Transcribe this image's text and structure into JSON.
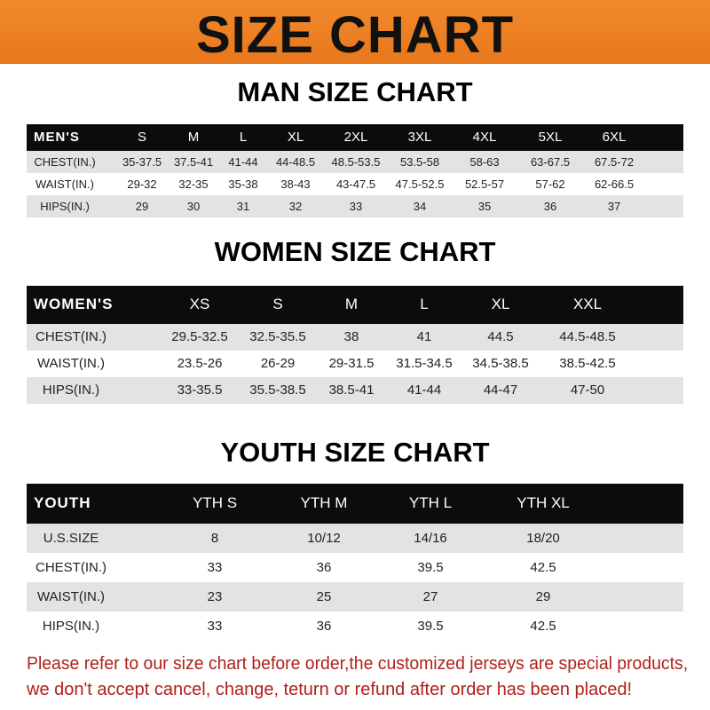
{
  "banner": {
    "title": "SIZE CHART",
    "color": "#ee8226"
  },
  "men": {
    "title": "MAN SIZE CHART",
    "headers": [
      "MEN'S",
      "S",
      "M",
      "L",
      "XL",
      "2XL",
      "3XL",
      "4XL",
      "5XL",
      "6XL"
    ],
    "rows": [
      [
        "CHEST(IN.)",
        "35-37.5",
        "37.5-41",
        "41-44",
        "44-48.5",
        "48.5-53.5",
        "53.5-58",
        "58-63",
        "63-67.5",
        "67.5-72"
      ],
      [
        "WAIST(IN.)",
        "29-32",
        "32-35",
        "35-38",
        "38-43",
        "43-47.5",
        "47.5-52.5",
        "52.5-57",
        "57-62",
        "62-66.5"
      ],
      [
        "HIPS(IN.)",
        "29",
        "30",
        "31",
        "32",
        "33",
        "34",
        "35",
        "36",
        "37"
      ]
    ]
  },
  "women": {
    "title": "WOMEN SIZE CHART",
    "headers": [
      "WOMEN'S",
      "XS",
      "S",
      "M",
      "L",
      "XL",
      "XXL"
    ],
    "rows": [
      [
        "CHEST(IN.)",
        "29.5-32.5",
        "32.5-35.5",
        "38",
        "41",
        "44.5",
        "44.5-48.5"
      ],
      [
        "WAIST(IN.)",
        "23.5-26",
        "26-29",
        "29-31.5",
        "31.5-34.5",
        "34.5-38.5",
        "38.5-42.5"
      ],
      [
        "HIPS(IN.)",
        "33-35.5",
        "35.5-38.5",
        "38.5-41",
        "41-44",
        "44-47",
        "47-50"
      ]
    ]
  },
  "youth": {
    "title": "YOUTH SIZE CHART",
    "headers": [
      "YOUTH",
      "YTH S",
      "YTH M",
      "YTH L",
      "YTH XL"
    ],
    "rows": [
      [
        "U.S.SIZE",
        "8",
        "10/12",
        "14/16",
        "18/20"
      ],
      [
        "CHEST(IN.)",
        "33",
        "36",
        "39.5",
        "42.5"
      ],
      [
        "WAIST(IN.)",
        "23",
        "25",
        "27",
        "29"
      ],
      [
        "HIPS(IN.)",
        "33",
        "36",
        "39.5",
        "42.5"
      ]
    ]
  },
  "footer": {
    "line1": "Please refer to our size chart before order,the customized jerseys are special products,",
    "line2": "we don't accept cancel, change, teturn or refund after order has been placed!",
    "color": "#b0201c"
  }
}
